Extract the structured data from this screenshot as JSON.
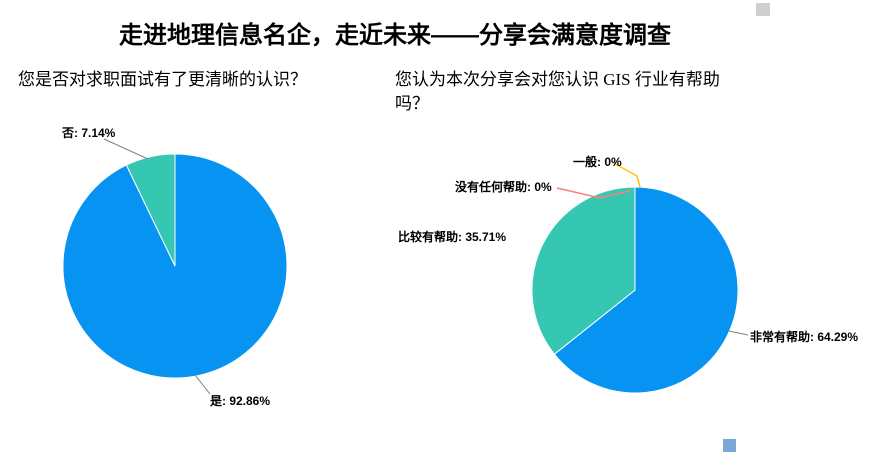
{
  "page": {
    "title": "走进地理信息名企，走近未来——分享会满意度调查"
  },
  "chart_data": [
    {
      "type": "pie",
      "title": "您是否对求职面试有了更清晰的认识？",
      "legend_position": "none",
      "start_angle": "12-oclock-clockwise",
      "slices": [
        {
          "label": "是",
          "value": 92.86,
          "color": "#0693f1",
          "data_label": "是: 92.86%"
        },
        {
          "label": "否",
          "value": 7.14,
          "color": "#35c7b2",
          "data_label": "否: 7.14%"
        }
      ]
    },
    {
      "type": "pie",
      "title": "您认为本次分享会对您认识 GIS 行业有帮助吗？",
      "legend_position": "none",
      "start_angle": "12-oclock-clockwise",
      "slices": [
        {
          "label": "非常有帮助",
          "value": 64.29,
          "color": "#0693f1",
          "data_label": "非常有帮助: 64.29%"
        },
        {
          "label": "比较有帮助",
          "value": 35.71,
          "color": "#35c7b2",
          "data_label": "比较有帮助: 35.71%"
        },
        {
          "label": "没有任何帮助",
          "value": 0,
          "color": "#ff7e79",
          "data_label": "没有任何帮助: 0%"
        },
        {
          "label": "一般",
          "value": 0,
          "color": "#ffc000",
          "data_label": "一般: 0%"
        }
      ]
    }
  ],
  "artifacts": {
    "top_right_square_color": "#cfcfcf",
    "bottom_square_color": "#7da7d9",
    "leader_line_color": "#7f7f7f"
  }
}
